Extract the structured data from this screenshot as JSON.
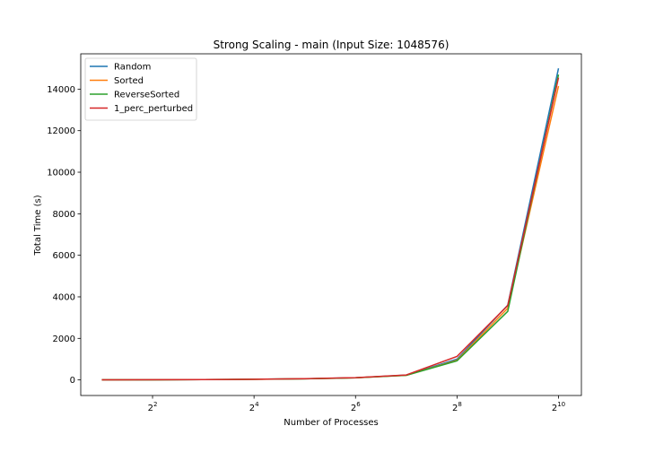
{
  "chart_data": {
    "type": "line",
    "title": "Strong Scaling - main (Input Size: 1048576)",
    "xlabel": "Number of Processes",
    "ylabel": "Total Time (s)",
    "x_scale": "log2",
    "x": [
      2,
      4,
      8,
      16,
      32,
      64,
      128,
      256,
      512,
      1024
    ],
    "xlim": [
      1.5,
      1400
    ],
    "ylim": [
      -750,
      15700
    ],
    "x_ticks": [
      {
        "value": 4,
        "base": "2",
        "exp": "2"
      },
      {
        "value": 16,
        "base": "2",
        "exp": "4"
      },
      {
        "value": 64,
        "base": "2",
        "exp": "6"
      },
      {
        "value": 256,
        "base": "2",
        "exp": "8"
      },
      {
        "value": 1024,
        "base": "2",
        "exp": "10"
      }
    ],
    "y_ticks": [
      {
        "value": 0,
        "label": "0"
      },
      {
        "value": 2000,
        "label": "2000"
      },
      {
        "value": 4000,
        "label": "4000"
      },
      {
        "value": 6000,
        "label": "6000"
      },
      {
        "value": 8000,
        "label": "8000"
      },
      {
        "value": 10000,
        "label": "10000"
      },
      {
        "value": 12000,
        "label": "12000"
      },
      {
        "value": 14000,
        "label": "14000"
      }
    ],
    "grid": false,
    "legend_position": "top-left",
    "series": [
      {
        "name": "Random",
        "color": "#1f77b4",
        "values": [
          5,
          8,
          15,
          30,
          55,
          105,
          230,
          1000,
          3600,
          15000
        ]
      },
      {
        "name": "Sorted",
        "color": "#ff7f0e",
        "values": [
          4,
          7,
          14,
          28,
          52,
          100,
          220,
          950,
          3450,
          14150
        ]
      },
      {
        "name": "ReverseSorted",
        "color": "#2ca02c",
        "values": [
          5,
          8,
          15,
          30,
          55,
          100,
          220,
          920,
          3300,
          14700
        ]
      },
      {
        "name": "1_perc_perturbed",
        "color": "#d62728",
        "values": [
          6,
          9,
          16,
          32,
          58,
          110,
          240,
          1130,
          3580,
          14550
        ]
      }
    ]
  }
}
